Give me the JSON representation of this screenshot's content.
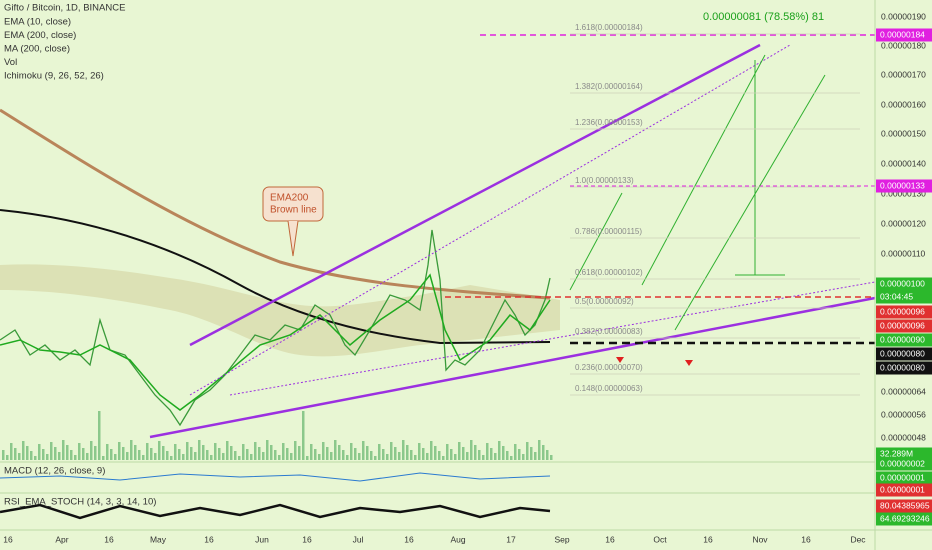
{
  "header": {
    "symbol": "Gifto / Bitcoin, 1D, BINANCE",
    "indicators": [
      "EMA (10, close)",
      "EMA (200, close)",
      "MA (200, close)",
      "Vol",
      "Ichimoku (9, 26, 52, 26)"
    ]
  },
  "annotation": "0.00000081 (78.58%) 81",
  "callout": [
    "EMA200",
    "Brown line"
  ],
  "fib_levels": [
    "1.618(0.00000184)",
    "1.382(0.00000164)",
    "1.236(0.00000153)",
    "1.0(0.00000133)",
    "0.786(0.00000115)",
    "0.618(0.00000102)",
    "0.5(0.00000092)",
    "0.382(0.00000083)",
    "0.236(0.00000070)",
    "0.148(0.00000063)"
  ],
  "price_axis": [
    "0.00000190",
    "0.00000180",
    "0.00000170",
    "0.00000160",
    "0.00000150",
    "0.00000140",
    "0.00000130",
    "0.00000120",
    "0.00000110",
    "0.00000064",
    "0.00000056",
    "0.00000048"
  ],
  "price_labels": [
    "0.00000184",
    "0.00000133",
    "0.00000100",
    "03:04:45",
    "0.00000096",
    "0.00000096",
    "0.00000090",
    "0.00000080",
    "0.00000080",
    "32.289M",
    "0.00000002",
    "0.00000001",
    "0.00000001",
    "80.04385965",
    "64.69293246"
  ],
  "time_axis": [
    "16",
    "Apr",
    "16",
    "May",
    "16",
    "Jun",
    "16",
    "Jul",
    "16",
    "Aug",
    "17",
    "Sep",
    "16",
    "Oct",
    "16",
    "Nov",
    "16",
    "Dec"
  ],
  "panels": {
    "macd": "MACD (12, 26, close, 9)",
    "rsi": "RSI_EMA_STOCH (14, 3, 3, 14, 10)"
  }
}
